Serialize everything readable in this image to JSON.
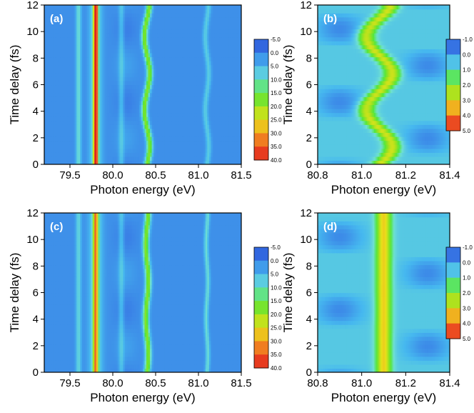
{
  "colorscale": [
    "#2a4fd8",
    "#3a7fe6",
    "#46b8ef",
    "#6fe0d2",
    "#54e63c",
    "#9ae21f",
    "#e8e21a",
    "#f2a020",
    "#ee5a22",
    "#e01c1c"
  ],
  "chart_data": [
    {
      "type": "heatmap",
      "panel_label": "(a)",
      "xlabel": "Photon energy (eV)",
      "ylabel": "Time delay (fs)",
      "xlim": [
        79.2,
        81.5
      ],
      "ylim": [
        0,
        12
      ],
      "xticks": [
        "79.5",
        "80.0",
        "80.5",
        "81.0",
        "81.5"
      ],
      "xtick_values": [
        79.5,
        80.0,
        80.5,
        81.0,
        81.5
      ],
      "yticks": [
        "0",
        "2",
        "4",
        "6",
        "8",
        "10",
        "12"
      ],
      "ytick_values": [
        0,
        2,
        4,
        6,
        8,
        10,
        12
      ],
      "colorbar_labels": [
        "-5.0",
        "0.0",
        "5.0",
        "10.0",
        "15.0",
        "20.0",
        "25.0",
        "30.0",
        "35.0",
        "40.0"
      ],
      "colorbar_range": [
        -5,
        40
      ],
      "features": [
        {
          "center": 79.8,
          "width": 0.025,
          "peak": 40,
          "osc_amp": 0,
          "osc_shift": 0
        },
        {
          "center": 79.8,
          "width": 0.07,
          "peak": 8,
          "osc_amp": 0,
          "osc_shift": 0
        },
        {
          "center": 79.6,
          "width": 0.03,
          "peak": 8,
          "osc_amp": 0,
          "osc_shift": 0
        },
        {
          "center": 80.4,
          "width": 0.035,
          "peak": 17,
          "osc_amp": 0.03,
          "osc_shift": 0
        },
        {
          "center": 80.1,
          "width": 0.03,
          "peak": 5,
          "osc_amp": 0,
          "osc_shift": 0
        },
        {
          "center": 81.1,
          "width": 0.03,
          "peak": 6,
          "osc_amp": 0.02,
          "osc_shift": 0
        }
      ],
      "oscillation_period_fs": 5.5
    },
    {
      "type": "heatmap",
      "panel_label": "(b)",
      "xlabel": "Photon energy (eV)",
      "ylabel": "Time delay (fs)",
      "xlim": [
        80.8,
        81.4
      ],
      "ylim": [
        0,
        12
      ],
      "xticks": [
        "80.8",
        "81.0",
        "81.2",
        "81.4"
      ],
      "xtick_values": [
        80.8,
        81.0,
        81.2,
        81.4
      ],
      "yticks": [
        "0",
        "2",
        "4",
        "6",
        "8",
        "10",
        "12"
      ],
      "ytick_values": [
        0,
        2,
        4,
        6,
        8,
        10,
        12
      ],
      "colorbar_labels": [
        "-1.0",
        "0.0",
        "1.0",
        "2.0",
        "3.0",
        "4.0",
        "5.0"
      ],
      "colorbar_range": [
        -1,
        5
      ],
      "features": [
        {
          "center": 81.08,
          "width": 0.04,
          "peak": 2.2,
          "osc_amp": 0.06,
          "osc_shift": 0
        }
      ],
      "oscillation_period_fs": 5.5
    },
    {
      "type": "heatmap",
      "panel_label": "(c)",
      "xlabel": "Photon energy (eV)",
      "ylabel": "Time delay (fs)",
      "xlim": [
        79.2,
        81.5
      ],
      "ylim": [
        0,
        12
      ],
      "xticks": [
        "79.5",
        "80.0",
        "80.5",
        "81.0",
        "81.5"
      ],
      "xtick_values": [
        79.5,
        80.0,
        80.5,
        81.0,
        81.5
      ],
      "yticks": [
        "0",
        "2",
        "4",
        "6",
        "8",
        "10",
        "12"
      ],
      "ytick_values": [
        0,
        2,
        4,
        6,
        8,
        10,
        12
      ],
      "colorbar_labels": [
        "-5.0",
        "0.0",
        "5.0",
        "10.0",
        "15.0",
        "20.0",
        "25.0",
        "30.0",
        "35.0",
        "40.0"
      ],
      "colorbar_range": [
        -5,
        40
      ],
      "features": [
        {
          "center": 79.8,
          "width": 0.03,
          "peak": 26,
          "osc_amp": 0,
          "osc_shift": 0
        },
        {
          "center": 79.8,
          "width": 0.08,
          "peak": 7,
          "osc_amp": 0,
          "osc_shift": 0
        },
        {
          "center": 79.6,
          "width": 0.03,
          "peak": 7,
          "osc_amp": 0,
          "osc_shift": 0
        },
        {
          "center": 80.4,
          "width": 0.035,
          "peak": 17,
          "osc_amp": 0.015,
          "osc_shift": 0
        },
        {
          "center": 80.1,
          "width": 0.03,
          "peak": 5,
          "osc_amp": 0,
          "osc_shift": 0
        },
        {
          "center": 81.1,
          "width": 0.025,
          "peak": 8,
          "osc_amp": 0.01,
          "osc_shift": 0
        }
      ],
      "oscillation_period_fs": 5.5
    },
    {
      "type": "heatmap",
      "panel_label": "(d)",
      "xlabel": "Photon energy (eV)",
      "ylabel": "Time delay (fs)",
      "xlim": [
        80.8,
        81.4
      ],
      "ylim": [
        0,
        12
      ],
      "xticks": [
        "80.8",
        "81.0",
        "81.2",
        "81.4"
      ],
      "xtick_values": [
        80.8,
        81.0,
        81.2,
        81.4
      ],
      "yticks": [
        "0",
        "2",
        "4",
        "6",
        "8",
        "10",
        "12"
      ],
      "ytick_values": [
        0,
        2,
        4,
        6,
        8,
        10,
        12
      ],
      "colorbar_labels": [
        "-1.0",
        "0.0",
        "1.0",
        "2.0",
        "3.0",
        "4.0",
        "5.0"
      ],
      "colorbar_range": [
        -1,
        5
      ],
      "features": [
        {
          "center": 81.1,
          "width": 0.035,
          "peak": 2.6,
          "osc_amp": 0,
          "osc_shift": 0
        }
      ],
      "oscillation_period_fs": 5.5
    }
  ]
}
